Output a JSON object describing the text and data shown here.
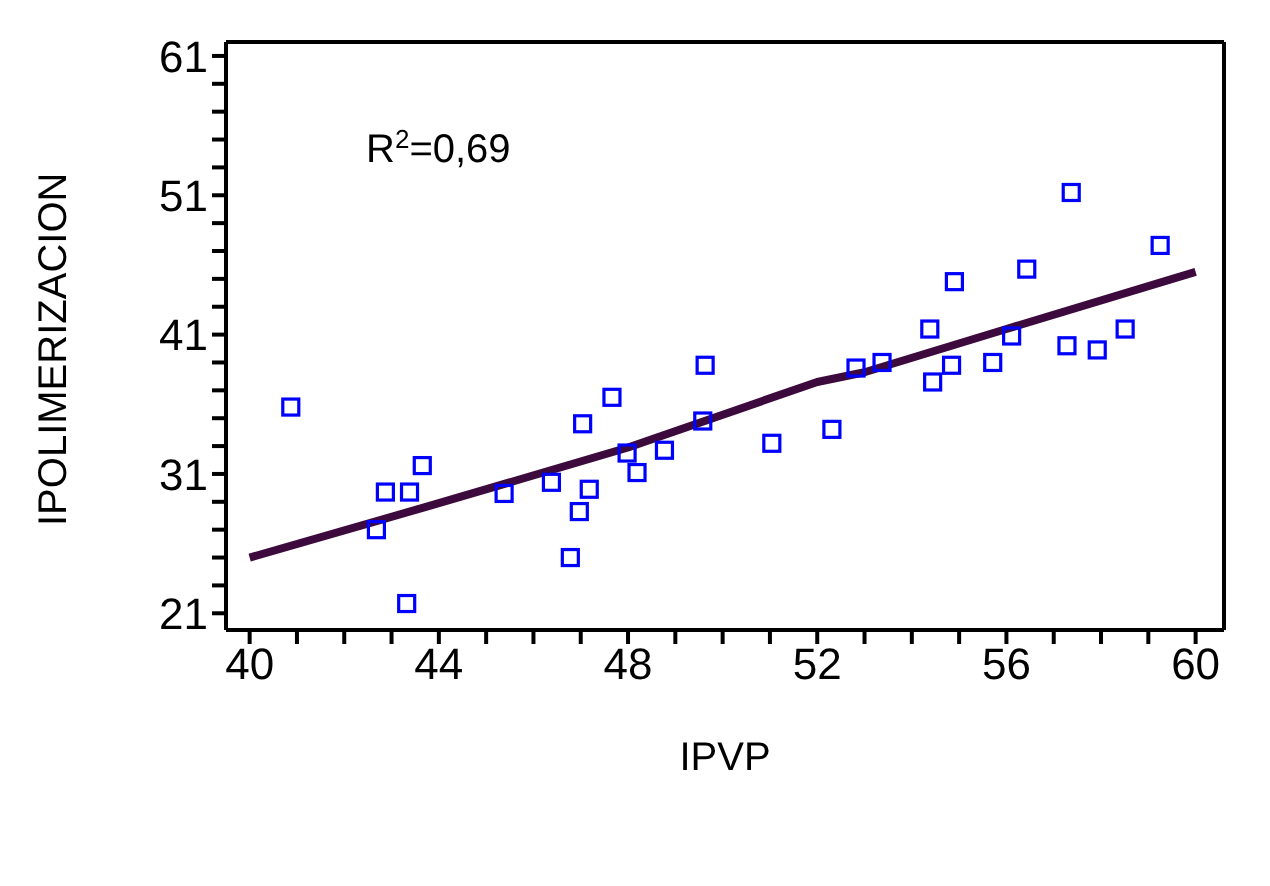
{
  "chart_data": {
    "type": "scatter",
    "xlabel": "IPVP",
    "ylabel": "IPOLIMERIZACION",
    "annotations": [
      "R$^{2}$=0,69"
    ],
    "xlim": [
      39.5,
      60.6
    ],
    "ylim": [
      19.8,
      62
    ],
    "xticks": [
      40,
      {
        "value": 41,
        "label": null
      },
      {
        "value": 42,
        "label": null
      },
      {
        "value": 43,
        "label": null
      },
      44,
      {
        "value": 45,
        "label": null
      },
      {
        "value": 46,
        "label": null
      },
      {
        "value": 47,
        "label": null
      },
      48,
      {
        "value": 49,
        "label": null
      },
      {
        "value": 50,
        "label": null
      },
      {
        "value": 51,
        "label": null
      },
      52,
      {
        "value": 53,
        "label": null
      },
      {
        "value": 54,
        "label": null
      },
      {
        "value": 55,
        "label": null
      },
      56,
      {
        "value": 57,
        "label": null
      },
      {
        "value": 58,
        "label": null
      },
      {
        "value": 59,
        "label": null
      },
      60
    ],
    "yticks": [
      21,
      {
        "value": 23,
        "label": null
      },
      {
        "value": 25,
        "label": null
      },
      {
        "value": 27,
        "label": null
      },
      {
        "value": 29,
        "label": null
      },
      31,
      {
        "value": 33,
        "label": null
      },
      {
        "value": 35,
        "label": null
      },
      {
        "value": 37,
        "label": null
      },
      {
        "value": 39,
        "label": null
      },
      41,
      {
        "value": 43,
        "label": null
      },
      {
        "value": 45,
        "label": null
      },
      {
        "value": 47,
        "label": null
      },
      {
        "value": 49,
        "label": null
      },
      51,
      {
        "value": 53,
        "label": null
      },
      {
        "value": 55,
        "label": null
      },
      {
        "value": 57,
        "label": null
      },
      {
        "value": 59,
        "label": null
      },
      61
    ],
    "legend": false,
    "marker": "square",
    "series": [
      {
        "color": "#0000ff",
        "x": [
          40.87,
          42.68,
          42.87,
          43.38,
          43.32,
          43.65,
          45.38,
          46.38,
          46.78,
          46.97,
          47.04,
          47.18,
          47.66,
          47.98,
          48.19,
          48.77,
          49.58,
          49.63,
          51.04,
          52.31,
          52.82,
          53.37,
          54.38,
          54.44,
          54.84,
          54.9,
          55.71,
          56.11,
          56.43,
          57.28,
          57.37,
          57.92,
          58.51,
          59.25
        ],
        "values": [
          35.8,
          27.0,
          29.7,
          29.7,
          21.7,
          31.6,
          29.6,
          30.4,
          25.0,
          28.3,
          34.6,
          29.9,
          36.5,
          32.5,
          31.1,
          32.7,
          34.8,
          38.8,
          33.2,
          34.2,
          38.6,
          39.0,
          41.4,
          37.6,
          38.8,
          44.8,
          39.0,
          40.9,
          45.7,
          40.2,
          51.2,
          39.9,
          41.4,
          47.4
        ]
      },
      {
        "type": "line",
        "color": "#3d0a3d",
        "marker": "none",
        "line_style": "solid",
        "x": [
          40,
          44,
          48,
          52,
          53,
          56,
          60
        ],
        "values": [
          25.0,
          28.9,
          32.9,
          37.6,
          38.3,
          41.4,
          45.5
        ]
      }
    ]
  }
}
